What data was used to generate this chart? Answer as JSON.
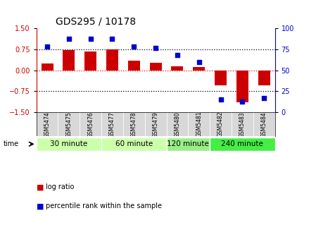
{
  "title": "GDS295 / 10178",
  "samples": [
    "GSM5474",
    "GSM5475",
    "GSM5476",
    "GSM5477",
    "GSM5478",
    "GSM5479",
    "GSM5480",
    "GSM5481",
    "GSM5482",
    "GSM5483",
    "GSM5484"
  ],
  "log_ratio": [
    0.25,
    0.72,
    0.68,
    0.76,
    0.35,
    0.28,
    0.15,
    0.12,
    -0.55,
    -1.15,
    -0.55
  ],
  "percentile": [
    78,
    88,
    88,
    88,
    78,
    77,
    68,
    60,
    15,
    13,
    17
  ],
  "group_boundaries": [
    {
      "label": "30 minute",
      "start": 0,
      "end": 3,
      "color": "#ccffaa"
    },
    {
      "label": "60 minute",
      "start": 3,
      "end": 6,
      "color": "#ccffaa"
    },
    {
      "label": "120 minute",
      "start": 6,
      "end": 8,
      "color": "#99ee88"
    },
    {
      "label": "240 minute",
      "start": 8,
      "end": 11,
      "color": "#44ee44"
    }
  ],
  "bar_color": "#cc0000",
  "dot_color": "#0000cc",
  "ylim_left": [
    -1.5,
    1.5
  ],
  "ylim_right": [
    0,
    100
  ],
  "yticks_left": [
    -1.5,
    -0.75,
    0,
    0.75,
    1.5
  ],
  "yticks_right": [
    0,
    25,
    50,
    75,
    100
  ],
  "hlines_black": [
    0.75,
    -0.75
  ],
  "hline_red": 0,
  "bg_color": "#ffffff",
  "title_fontsize": 10,
  "tick_fontsize": 7,
  "sample_fontsize": 5.5,
  "group_fontsize": 7.5,
  "legend_fontsize": 7
}
